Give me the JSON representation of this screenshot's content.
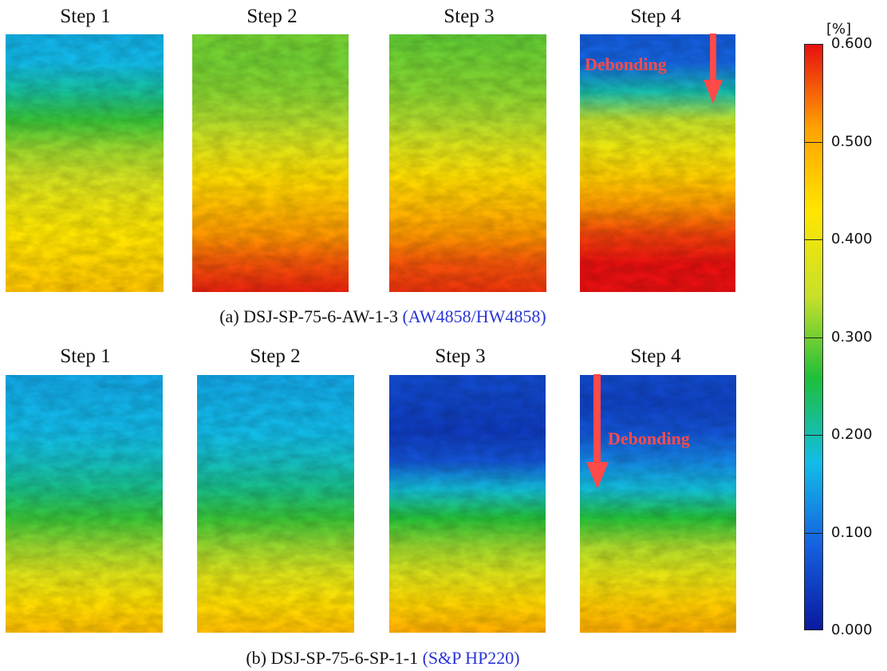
{
  "rows": [
    {
      "steps": [
        {
          "title": "Step 1",
          "annotation": ""
        },
        {
          "title": "Step 2",
          "annotation": ""
        },
        {
          "title": "Step 3",
          "annotation": ""
        },
        {
          "title": "Step 4",
          "annotation": "Debonding"
        }
      ],
      "caption_main": "(a) DSJ-SP-75-6-AW-1-3 ",
      "caption_material": "(AW4858/HW4858)"
    },
    {
      "steps": [
        {
          "title": "Step 1",
          "annotation": ""
        },
        {
          "title": "Step 2",
          "annotation": ""
        },
        {
          "title": "Step 3",
          "annotation": ""
        },
        {
          "title": "Step 4",
          "annotation": "Debonding"
        }
      ],
      "caption_main": "(b) DSJ-SP-75-6-SP-1-1 ",
      "caption_material": "(S&P HP220)"
    }
  ],
  "colors": {
    "annotation": "#ff4a4a",
    "caption_material": "#2a35d6"
  },
  "chart_data": {
    "type": "heatmap",
    "colorbar": {
      "unit": "[%]",
      "range": [
        0.0,
        0.6
      ],
      "ticks": [
        "0.000",
        "0.100",
        "0.200",
        "0.300",
        "0.400",
        "0.500",
        "0.600"
      ],
      "colormap": [
        "#0a1aa0",
        "#1560e0",
        "#12bde8",
        "#1ebf3a",
        "#c8e02a",
        "#ffe600",
        "#ffa100",
        "#e81010"
      ]
    },
    "panels": [
      {
        "row": "a",
        "step": 1,
        "profile": [
          0.16,
          0.17,
          0.21,
          0.27,
          0.32,
          0.36,
          0.4,
          0.43,
          0.45,
          0.47
        ]
      },
      {
        "row": "a",
        "step": 2,
        "profile": [
          0.3,
          0.3,
          0.31,
          0.33,
          0.38,
          0.44,
          0.48,
          0.52,
          0.56,
          0.59
        ]
      },
      {
        "row": "a",
        "step": 3,
        "profile": [
          0.29,
          0.3,
          0.31,
          0.33,
          0.38,
          0.44,
          0.48,
          0.52,
          0.56,
          0.58
        ]
      },
      {
        "row": "a",
        "step": 4,
        "profile": [
          0.08,
          0.09,
          0.2,
          0.34,
          0.4,
          0.46,
          0.52,
          0.57,
          0.6,
          0.6
        ]
      },
      {
        "row": "b",
        "step": 1,
        "profile": [
          0.15,
          0.16,
          0.17,
          0.19,
          0.22,
          0.27,
          0.32,
          0.38,
          0.44,
          0.48
        ]
      },
      {
        "row": "b",
        "step": 2,
        "profile": [
          0.15,
          0.16,
          0.17,
          0.19,
          0.22,
          0.27,
          0.32,
          0.38,
          0.44,
          0.48
        ]
      },
      {
        "row": "b",
        "step": 3,
        "profile": [
          0.06,
          0.05,
          0.04,
          0.07,
          0.18,
          0.26,
          0.32,
          0.38,
          0.45,
          0.5
        ]
      },
      {
        "row": "b",
        "step": 4,
        "profile": [
          0.06,
          0.05,
          0.07,
          0.12,
          0.18,
          0.26,
          0.33,
          0.39,
          0.46,
          0.5
        ]
      }
    ]
  }
}
